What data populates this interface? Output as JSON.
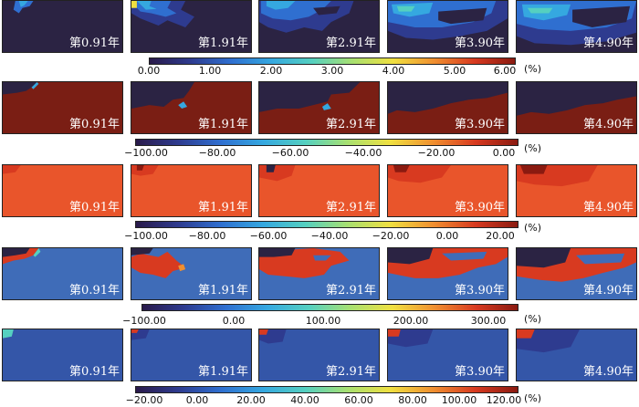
{
  "time_labels": [
    "第0.91年",
    "第1.91年",
    "第2.91年",
    "第3.90年",
    "第4.90年"
  ],
  "colors": {
    "jet": [
      "#2a1a4a",
      "#2e3b8f",
      "#2f6fd0",
      "#35a8e0",
      "#55d0c0",
      "#a8e070",
      "#f0e040",
      "#f09030",
      "#d83a20",
      "#8a1a10"
    ],
    "row1_bg": "#2b2343",
    "row2_bg": "#7a1e14",
    "row3_bg": "#e9552b",
    "row4_bg": "#3f6cb8",
    "row5_bg": "#3456a8"
  },
  "rows": [
    {
      "name": "row1",
      "colorbar": {
        "ticks": [
          "0.00",
          "1.00",
          "2.00",
          "3.00",
          "4.00",
          "5.00",
          "6.00"
        ],
        "unit": "(%)"
      }
    },
    {
      "name": "row2",
      "colorbar": {
        "ticks": [
          "−100.00",
          "−80.00",
          "−60.00",
          "−40.00",
          "−20.00",
          "0.00"
        ],
        "unit": "(%)"
      }
    },
    {
      "name": "row3",
      "colorbar": {
        "ticks": [
          "−100.00",
          "−80.00",
          "−60.00",
          "−40.00",
          "−20.00",
          "0.00",
          "20.00"
        ],
        "unit": "(%)"
      }
    },
    {
      "name": "row4",
      "colorbar": {
        "ticks": [
          "−100.00",
          "0.00",
          "100.00",
          "200.00",
          "300.00"
        ],
        "unit": "(%)"
      }
    },
    {
      "name": "row5",
      "colorbar": {
        "ticks": [
          "−20.00",
          "0.00",
          "20.00",
          "40.00",
          "60.00",
          "80.00",
          "100.00",
          "120.00"
        ],
        "unit": "(%)"
      }
    }
  ]
}
